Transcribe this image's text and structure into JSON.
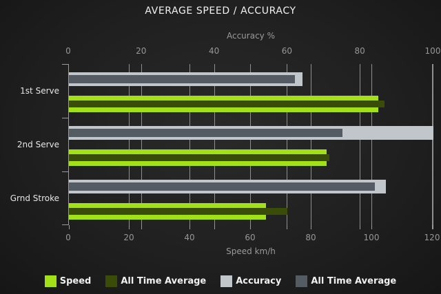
{
  "title": "AVERAGE SPEED / ACCURACY",
  "colors": {
    "speed": "#a2e01a",
    "speed_avg": "#3a4d08",
    "accuracy": "#c0c6ca",
    "accuracy_avg": "#545b62",
    "grid": "#8f8f8f",
    "background": "#202020"
  },
  "axes": {
    "top": {
      "label": "Accuracy %",
      "ticks": [
        "0",
        "20",
        "40",
        "60",
        "80",
        "100"
      ],
      "max": 100
    },
    "bottom": {
      "label": "Speed km/h",
      "ticks": [
        "0",
        "20",
        "40",
        "60",
        "80",
        "100",
        "120"
      ],
      "max": 120
    }
  },
  "legend": [
    {
      "label": "Speed",
      "color_key": "speed"
    },
    {
      "label": "All Time Average",
      "color_key": "speed_avg"
    },
    {
      "label": "Accuracy",
      "color_key": "accuracy"
    },
    {
      "label": "All Time Average",
      "color_key": "accuracy_avg"
    }
  ],
  "chart_data": {
    "type": "bar",
    "orientation": "horizontal",
    "title": "AVERAGE SPEED / ACCURACY",
    "categories": [
      "1st Serve",
      "2nd Serve",
      "Grnd Stroke"
    ],
    "series": [
      {
        "name": "Speed",
        "axis": "bottom",
        "color_key": "speed",
        "values": [
          102,
          85,
          65
        ]
      },
      {
        "name": "All Time Average",
        "axis": "bottom",
        "color_key": "speed_avg",
        "values": [
          104,
          86,
          72
        ]
      },
      {
        "name": "Accuracy",
        "axis": "top",
        "color_key": "accuracy",
        "values": [
          64,
          100,
          87
        ]
      },
      {
        "name": "All Time Average",
        "axis": "top",
        "color_key": "accuracy_avg",
        "values": [
          62,
          75,
          84
        ]
      }
    ],
    "top_axis": {
      "label": "Accuracy %",
      "xlim": [
        0,
        100
      ],
      "tick_step": 20
    },
    "bottom_axis": {
      "label": "Speed km/h",
      "xlim": [
        0,
        120
      ],
      "tick_step": 20
    },
    "grid": true,
    "legend_position": "bottom"
  }
}
